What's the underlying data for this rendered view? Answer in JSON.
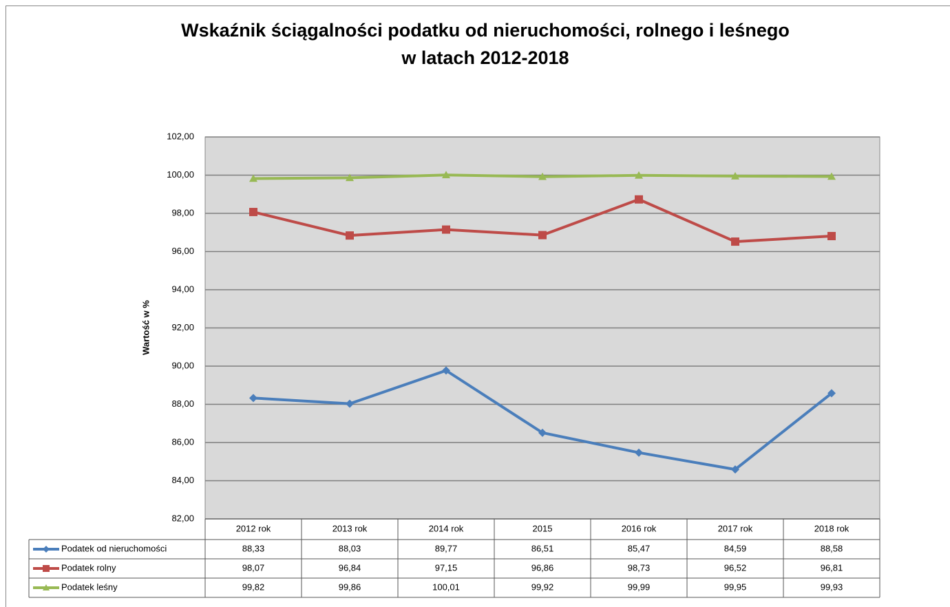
{
  "chart_data": {
    "type": "line",
    "title": [
      "Wskaźnik ściągalności podatku od nieruchomości, rolnego i leśnego",
      "w latach 2012-2018"
    ],
    "ylabel": "Wartość w %",
    "categories": [
      "2012 rok",
      "2013 rok",
      "2014 rok",
      "2015",
      "2016 rok",
      "2017 rok",
      "2018 rok"
    ],
    "series": [
      {
        "name": "Podatek od nieruchomości",
        "color": "#4a7ebb",
        "marker": "diamond",
        "values": [
          88.33,
          88.03,
          89.77,
          86.51,
          85.47,
          84.59,
          88.58
        ],
        "value_labels": [
          "88,33",
          "88,03",
          "89,77",
          "86,51",
          "85,47",
          "84,59",
          "88,58"
        ]
      },
      {
        "name": "Podatek rolny",
        "color": "#be4b48",
        "marker": "square",
        "values": [
          98.07,
          96.84,
          97.15,
          96.86,
          98.73,
          96.52,
          96.81
        ],
        "value_labels": [
          "98,07",
          "96,84",
          "97,15",
          "96,86",
          "98,73",
          "96,52",
          "96,81"
        ]
      },
      {
        "name": "Podatek leśny",
        "color": "#98b954",
        "marker": "triangle",
        "values": [
          99.82,
          99.86,
          100.01,
          99.92,
          99.99,
          99.95,
          99.93
        ],
        "value_labels": [
          "99,82",
          "99,86",
          "100,01",
          "99,92",
          "99,99",
          "99,95",
          "99,93"
        ]
      }
    ],
    "ylim": [
      82,
      102
    ],
    "yticks": [
      {
        "value": 82,
        "label": "82,00"
      },
      {
        "value": 84,
        "label": "84,00"
      },
      {
        "value": 86,
        "label": "86,00"
      },
      {
        "value": 88,
        "label": "88,00"
      },
      {
        "value": 90,
        "label": "90,00"
      },
      {
        "value": 92,
        "label": "92,00"
      },
      {
        "value": 94,
        "label": "94,00"
      },
      {
        "value": 96,
        "label": "96,00"
      },
      {
        "value": 98,
        "label": "98,00"
      },
      {
        "value": 100,
        "label": "100,00"
      },
      {
        "value": 102,
        "label": "102,00"
      }
    ],
    "grid": true,
    "plot_background": "#d9d9d9"
  }
}
